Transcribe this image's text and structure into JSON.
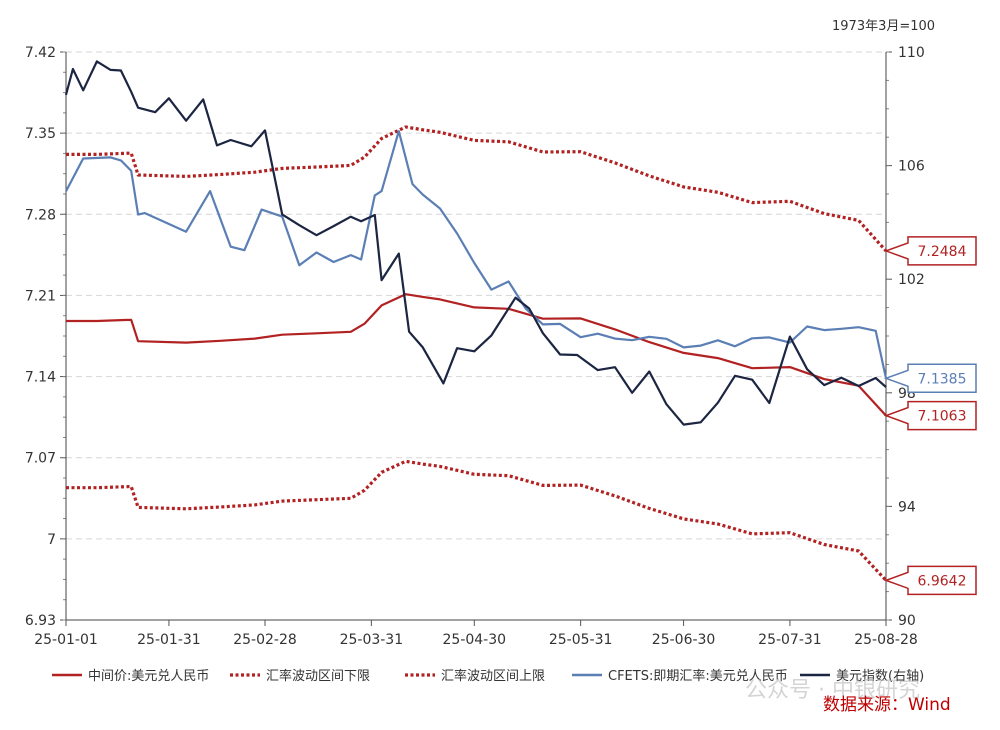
{
  "chart_data": {
    "type": "line",
    "unit_note": "1973年3月=100",
    "source": "数据来源：Wind",
    "watermark": "公众号 · 中银研究",
    "left_axis": {
      "ylim": [
        6.93,
        7.42
      ],
      "ticks": [
        "6.93",
        "7",
        "7.07",
        "7.14",
        "7.21",
        "7.28",
        "7.35",
        "7.42"
      ]
    },
    "right_axis": {
      "ylim": [
        90,
        110
      ],
      "ticks": [
        "90",
        "94",
        "98",
        "102",
        "106",
        "110"
      ]
    },
    "x_axis": {
      "start": "2025-01-01",
      "end": "2025-08-28",
      "tick_labels": [
        "25-01-01",
        "25-01-31",
        "25-02-28",
        "25-03-31",
        "25-04-30",
        "25-05-31",
        "25-06-30",
        "25-07-31",
        "25-08-28"
      ],
      "tick_dates": [
        "2025-01-01",
        "2025-01-31",
        "2025-02-28",
        "2025-03-31",
        "2025-04-30",
        "2025-05-31",
        "2025-06-30",
        "2025-07-31",
        "2025-08-28"
      ]
    },
    "series": [
      {
        "name": "中间价:美元兑人民币",
        "axis": "left",
        "color": "#b22222",
        "style": "solid",
        "last_value_label": "7.1063",
        "x": [
          "2025-01-01",
          "2025-01-10",
          "2025-01-20",
          "2025-01-22",
          "2025-02-05",
          "2025-02-15",
          "2025-02-25",
          "2025-03-05",
          "2025-03-15",
          "2025-03-25",
          "2025-03-29",
          "2025-04-03",
          "2025-04-10",
          "2025-04-15",
          "2025-04-20",
          "2025-04-30",
          "2025-05-10",
          "2025-05-20",
          "2025-05-31",
          "2025-06-10",
          "2025-06-20",
          "2025-06-30",
          "2025-07-10",
          "2025-07-20",
          "2025-07-31",
          "2025-08-10",
          "2025-08-20",
          "2025-08-28"
        ],
        "values": [
          7.1879,
          7.1879,
          7.189,
          7.1705,
          7.1693,
          7.1709,
          7.1728,
          7.1761,
          7.1773,
          7.1786,
          7.1856,
          7.2014,
          7.2111,
          7.2087,
          7.2066,
          7.1997,
          7.1985,
          7.1899,
          7.1902,
          7.1807,
          7.1697,
          7.1604,
          7.1559,
          7.1472,
          7.1482,
          7.1378,
          7.1321,
          7.1063
        ]
      },
      {
        "name": "汇率波动区间下限",
        "axis": "left",
        "color": "#b22222",
        "style": "dotted",
        "last_value_label": "6.9642",
        "x": [
          "2025-01-01",
          "2025-01-10",
          "2025-01-20",
          "2025-01-22",
          "2025-02-05",
          "2025-02-15",
          "2025-02-25",
          "2025-03-05",
          "2025-03-15",
          "2025-03-25",
          "2025-03-29",
          "2025-04-03",
          "2025-04-10",
          "2025-04-15",
          "2025-04-20",
          "2025-04-30",
          "2025-05-10",
          "2025-05-20",
          "2025-05-31",
          "2025-06-10",
          "2025-06-20",
          "2025-06-30",
          "2025-07-10",
          "2025-07-20",
          "2025-07-31",
          "2025-08-10",
          "2025-08-20",
          "2025-08-28"
        ],
        "values": [
          7.0441,
          7.0441,
          7.0452,
          7.0271,
          7.0259,
          7.0275,
          7.0293,
          7.0326,
          7.0338,
          7.035,
          7.0419,
          7.0574,
          7.0669,
          7.0645,
          7.0625,
          7.0557,
          7.0545,
          7.0461,
          7.0464,
          7.0371,
          7.0263,
          7.0172,
          7.0128,
          7.0043,
          7.0053,
          6.9951,
          6.9895,
          6.9642
        ]
      },
      {
        "name": "汇率波动区间上限",
        "axis": "left",
        "color": "#b22222",
        "style": "dotted",
        "last_value_label": "7.2484",
        "x": [
          "2025-01-01",
          "2025-01-10",
          "2025-01-20",
          "2025-01-22",
          "2025-02-05",
          "2025-02-15",
          "2025-02-25",
          "2025-03-05",
          "2025-03-15",
          "2025-03-25",
          "2025-03-29",
          "2025-04-03",
          "2025-04-10",
          "2025-04-15",
          "2025-04-20",
          "2025-04-30",
          "2025-05-10",
          "2025-05-20",
          "2025-05-31",
          "2025-06-10",
          "2025-06-20",
          "2025-06-30",
          "2025-07-10",
          "2025-07-20",
          "2025-07-31",
          "2025-08-10",
          "2025-08-20",
          "2025-08-28"
        ],
        "values": [
          7.3317,
          7.3317,
          7.3328,
          7.3139,
          7.3127,
          7.3143,
          7.3163,
          7.3196,
          7.3208,
          7.3222,
          7.3293,
          7.3454,
          7.3553,
          7.3529,
          7.3507,
          7.3437,
          7.3425,
          7.3337,
          7.334,
          7.3243,
          7.3131,
          7.3036,
          7.299,
          7.2901,
          7.2912,
          7.2806,
          7.2747,
          7.2484
        ]
      },
      {
        "name": "CFETS:即期汇率:美元兑人民币",
        "axis": "left",
        "color": "#5b7fb5",
        "style": "solid",
        "last_value_label": "7.1385",
        "x": [
          "2025-01-01",
          "2025-01-06",
          "2025-01-14",
          "2025-01-17",
          "2025-01-20",
          "2025-01-22",
          "2025-01-24",
          "2025-02-05",
          "2025-02-12",
          "2025-02-18",
          "2025-02-22",
          "2025-02-27",
          "2025-03-05",
          "2025-03-10",
          "2025-03-15",
          "2025-03-20",
          "2025-03-25",
          "2025-03-28",
          "2025-04-01",
          "2025-04-03",
          "2025-04-08",
          "2025-04-12",
          "2025-04-15",
          "2025-04-20",
          "2025-04-25",
          "2025-04-30",
          "2025-05-05",
          "2025-05-10",
          "2025-05-15",
          "2025-05-20",
          "2025-05-25",
          "2025-05-31",
          "2025-06-05",
          "2025-06-10",
          "2025-06-15",
          "2025-06-20",
          "2025-06-25",
          "2025-06-30",
          "2025-07-05",
          "2025-07-10",
          "2025-07-15",
          "2025-07-20",
          "2025-07-25",
          "2025-07-31",
          "2025-08-05",
          "2025-08-10",
          "2025-08-15",
          "2025-08-20",
          "2025-08-25",
          "2025-08-28"
        ],
        "values": [
          7.2999,
          7.3281,
          7.3291,
          7.3265,
          7.3175,
          7.2798,
          7.281,
          7.265,
          7.3,
          7.252,
          7.249,
          7.284,
          7.278,
          7.236,
          7.247,
          7.2388,
          7.2448,
          7.241,
          7.2963,
          7.3,
          7.3517,
          7.306,
          7.297,
          7.285,
          7.2634,
          7.238,
          7.215,
          7.222,
          7.1986,
          7.185,
          7.1854,
          7.174,
          7.177,
          7.1728,
          7.1714,
          7.1743,
          7.1726,
          7.1652,
          7.1667,
          7.1713,
          7.1661,
          7.173,
          7.1738,
          7.1693,
          7.1832,
          7.1801,
          7.1812,
          7.1826,
          7.1795,
          7.1385
        ]
      },
      {
        "name": "美元指数(右轴)",
        "axis": "right",
        "color": "#1c2541",
        "style": "solid",
        "x": [
          "2025-01-01",
          "2025-01-03",
          "2025-01-06",
          "2025-01-10",
          "2025-01-14",
          "2025-01-17",
          "2025-01-20",
          "2025-01-22",
          "2025-01-27",
          "2025-01-31",
          "2025-02-05",
          "2025-02-10",
          "2025-02-14",
          "2025-02-18",
          "2025-02-24",
          "2025-02-28",
          "2025-03-05",
          "2025-03-10",
          "2025-03-15",
          "2025-03-20",
          "2025-03-25",
          "2025-03-28",
          "2025-04-01",
          "2025-04-03",
          "2025-04-08",
          "2025-04-11",
          "2025-04-15",
          "2025-04-21",
          "2025-04-25",
          "2025-04-30",
          "2025-05-05",
          "2025-05-12",
          "2025-05-16",
          "2025-05-20",
          "2025-05-25",
          "2025-05-30",
          "2025-06-05",
          "2025-06-10",
          "2025-06-15",
          "2025-06-20",
          "2025-06-25",
          "2025-06-30",
          "2025-07-05",
          "2025-07-10",
          "2025-07-15",
          "2025-07-20",
          "2025-07-25",
          "2025-07-31",
          "2025-08-05",
          "2025-08-10",
          "2025-08-15",
          "2025-08-20",
          "2025-08-25",
          "2025-08-28"
        ],
        "values": [
          108.49,
          109.4,
          108.65,
          109.67,
          109.37,
          109.35,
          108.6,
          108.04,
          107.88,
          108.37,
          107.58,
          108.33,
          106.71,
          106.9,
          106.68,
          107.24,
          104.28,
          103.9,
          103.55,
          103.87,
          104.2,
          104.04,
          104.26,
          101.97,
          102.9,
          100.15,
          99.6,
          98.33,
          99.57,
          99.46,
          100.02,
          101.35,
          100.97,
          100.1,
          99.35,
          99.33,
          98.8,
          98.9,
          98.0,
          98.75,
          97.6,
          96.88,
          96.96,
          97.65,
          98.6,
          98.46,
          97.64,
          99.98,
          98.83,
          98.27,
          98.53,
          98.24,
          98.52,
          98.2
        ]
      }
    ]
  },
  "legend": {
    "items": [
      {
        "label": "中间价:美元兑人民币",
        "color": "#b22222",
        "style": "solid"
      },
      {
        "label": "汇率波动区间下限",
        "color": "#b22222",
        "style": "dotted"
      },
      {
        "label": "汇率波动区间上限",
        "color": "#b22222",
        "style": "dotted"
      },
      {
        "label": "CFETS:即期汇率:美元兑人民币",
        "color": "#5b7fb5",
        "style": "solid"
      },
      {
        "label": "美元指数(右轴)",
        "color": "#1c2541",
        "style": "solid"
      }
    ]
  }
}
